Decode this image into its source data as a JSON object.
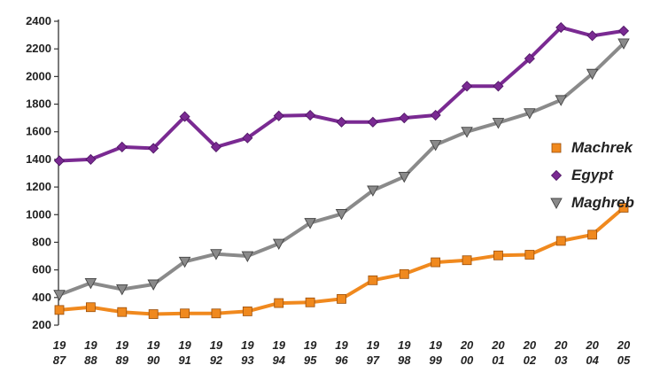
{
  "chart_data": {
    "type": "line",
    "title": "",
    "xlabel": "",
    "ylabel": "",
    "x": [
      "1987",
      "1988",
      "1989",
      "1990",
      "1991",
      "1992",
      "1993",
      "1994",
      "1995",
      "1996",
      "1997",
      "1998",
      "1999",
      "2000",
      "2001",
      "2002",
      "2003",
      "2004",
      "2005"
    ],
    "x_tick_labels": [
      [
        "19",
        "87"
      ],
      [
        "19",
        "88"
      ],
      [
        "19",
        "89"
      ],
      [
        "19",
        "90"
      ],
      [
        "19",
        "91"
      ],
      [
        "19",
        "92"
      ],
      [
        "19",
        "93"
      ],
      [
        "19",
        "94"
      ],
      [
        "19",
        "95"
      ],
      [
        "19",
        "96"
      ],
      [
        "19",
        "97"
      ],
      [
        "19",
        "98"
      ],
      [
        "19",
        "99"
      ],
      [
        "20",
        "00"
      ],
      [
        "20",
        "01"
      ],
      [
        "20",
        "02"
      ],
      [
        "20",
        "03"
      ],
      [
        "20",
        "04"
      ],
      [
        "20",
        "05"
      ]
    ],
    "ylim": [
      200,
      2400
    ],
    "yticks": [
      200,
      400,
      600,
      800,
      1000,
      1200,
      1400,
      1600,
      1800,
      2000,
      2200,
      2400
    ],
    "grid": false,
    "legend_position": "right",
    "series": [
      {
        "name": "Machrek",
        "color": "#f0891e",
        "marker": "square",
        "values": [
          310,
          330,
          295,
          280,
          285,
          285,
          300,
          360,
          365,
          390,
          525,
          570,
          655,
          670,
          705,
          710,
          810,
          855,
          1050
        ]
      },
      {
        "name": "Egypt",
        "color": "#7a2a92",
        "marker": "diamond",
        "values": [
          1390,
          1400,
          1490,
          1480,
          1710,
          1490,
          1555,
          1715,
          1720,
          1670,
          1670,
          1700,
          1720,
          1930,
          1930,
          2130,
          2355,
          2295,
          2330
        ]
      },
      {
        "name": "Maghreb",
        "color": "#8a8a8a",
        "marker": "triangle-down",
        "values": [
          420,
          505,
          460,
          495,
          660,
          715,
          700,
          790,
          940,
          1005,
          1175,
          1275,
          1505,
          1600,
          1665,
          1735,
          1830,
          2020,
          2240
        ]
      }
    ]
  }
}
